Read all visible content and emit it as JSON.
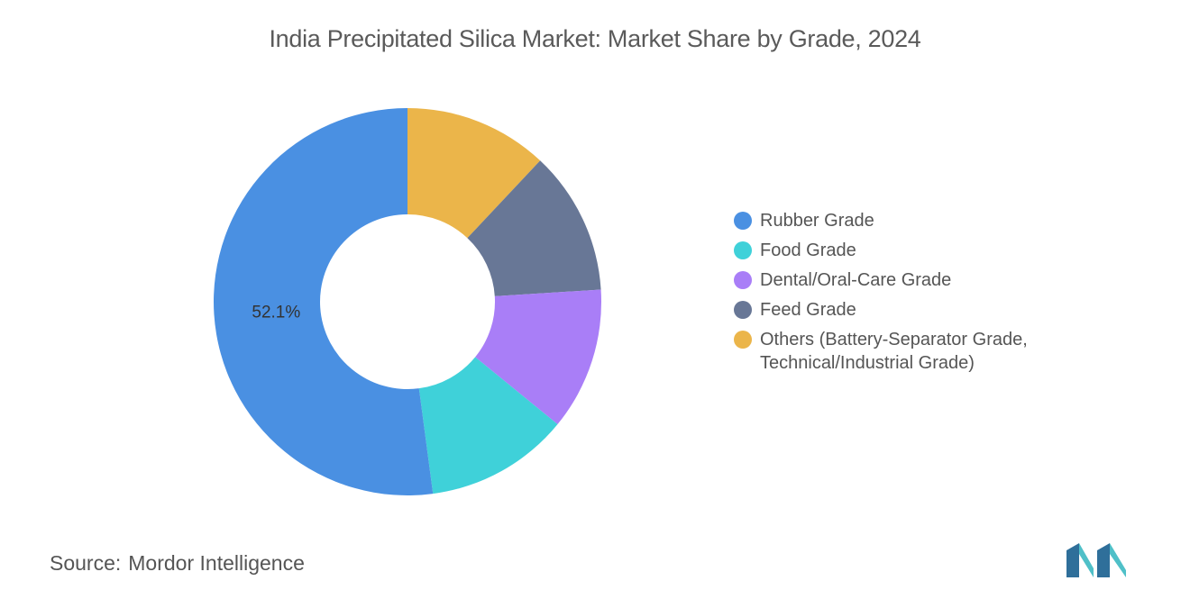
{
  "chart_data": {
    "type": "pie",
    "variant": "donut",
    "title": "India Precipitated Silica Market: Market Share by Grade, 2024",
    "categories": [
      "Rubber Grade",
      "Food Grade",
      "Dental/Oral-Care Grade",
      "Feed Grade",
      "Others (Battery-Separator Grade, Technical/Industrial Grade)"
    ],
    "values": [
      52.1,
      12.0,
      11.9,
      12.0,
      12.0
    ],
    "colors": [
      "#4a90e2",
      "#3fd1d9",
      "#a97ef7",
      "#687796",
      "#ebb54a"
    ],
    "data_labels": {
      "Rubber Grade": "52.1%"
    },
    "legend_placement": "right"
  },
  "legend": [
    {
      "label": "Rubber Grade"
    },
    {
      "label": "Food Grade"
    },
    {
      "label": "Dental/Oral-Care Grade"
    },
    {
      "label": "Feed Grade"
    },
    {
      "label": "Others (Battery-Separator Grade, Technical/Industrial Grade)"
    }
  ],
  "source": {
    "label": "Source:",
    "value": "Mordor Intelligence"
  },
  "logo": {
    "text": "Mordor Intelligence"
  }
}
